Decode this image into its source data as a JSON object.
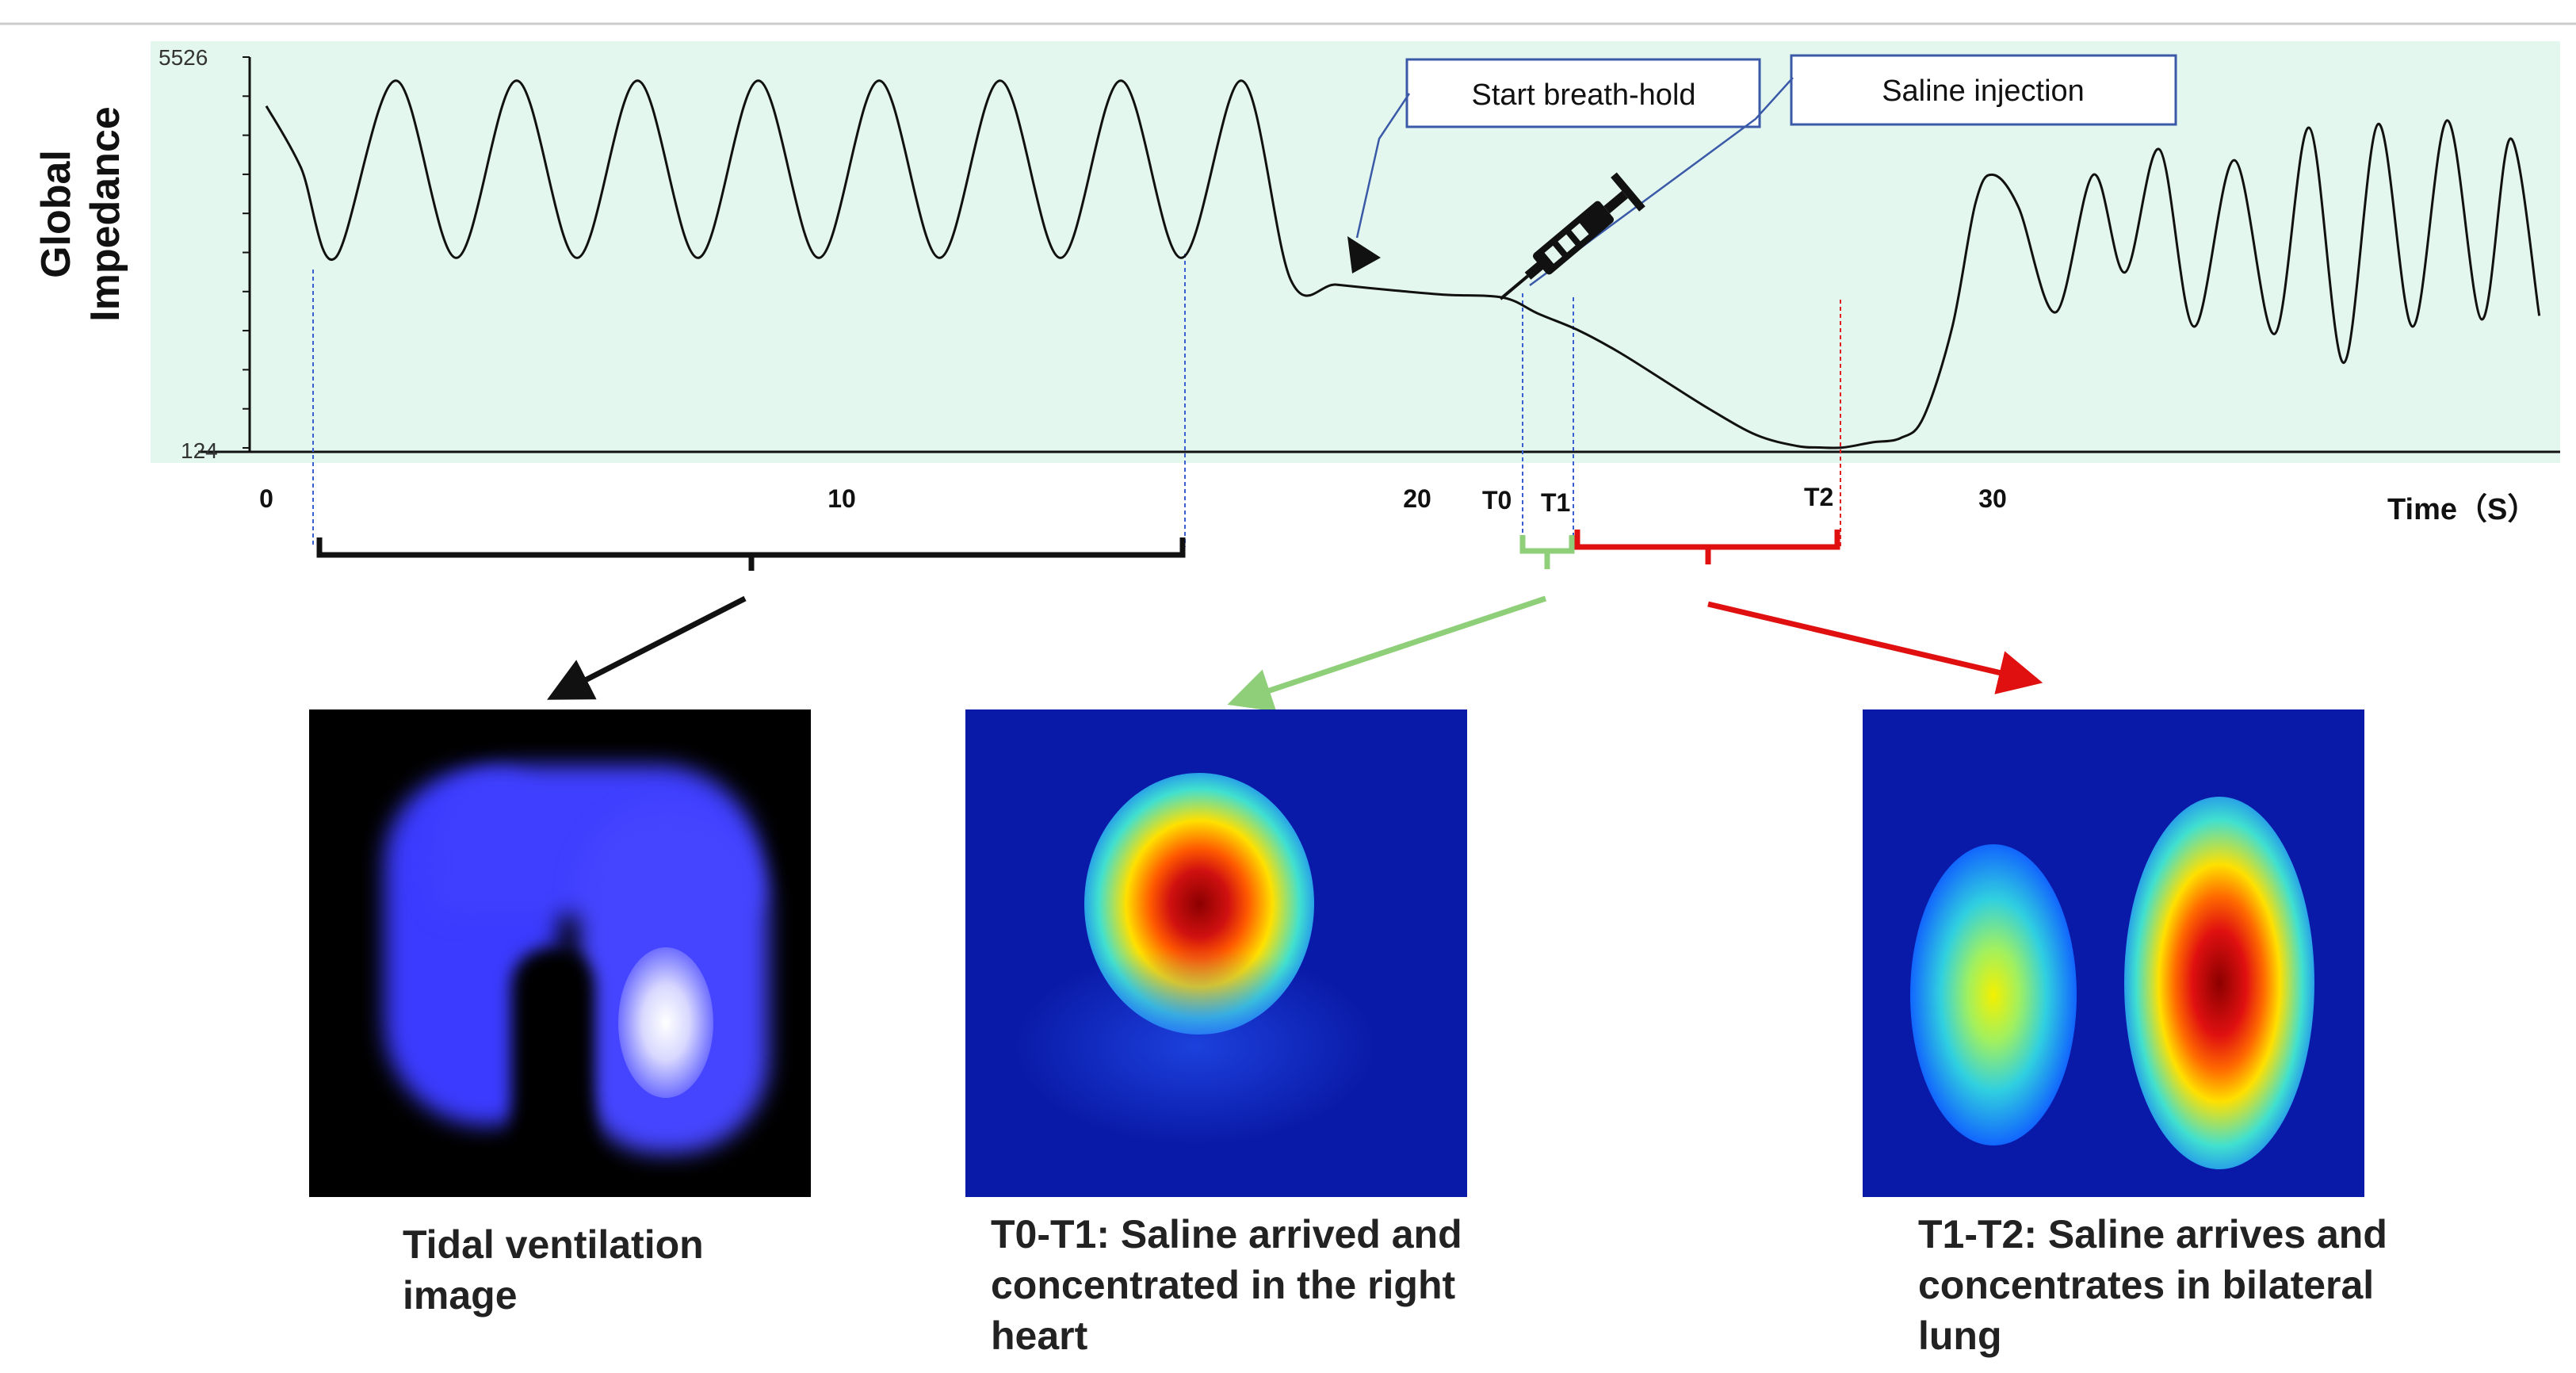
{
  "chart_data": {
    "type": "line",
    "ylabel_line1": "Global",
    "ylabel_line2": "Impedance",
    "xlabel": "Time（S）",
    "ylim": [
      124,
      5526
    ],
    "y_ticks": [
      "5526",
      "124"
    ],
    "xlim": [
      0,
      39.5
    ],
    "x_ticks": [
      {
        "value": 0,
        "label": "0"
      },
      {
        "value": 10,
        "label": "10"
      },
      {
        "value": 20,
        "label": "20"
      },
      {
        "value": 30,
        "label": "30"
      }
    ],
    "time_markers": [
      {
        "name": "T0",
        "x": 21.6
      },
      {
        "name": "T1",
        "x": 22.5
      },
      {
        "name": "T2",
        "x": 27.1
      }
    ],
    "series": [
      {
        "x": [
          0,
          0.6,
          1.2,
          2.25,
          3.3,
          4.35,
          5.4,
          6.45,
          7.5,
          8.55,
          9.6,
          10.65,
          11.7,
          12.75,
          13.8,
          14.85,
          15.9,
          16.95,
          17.8,
          18.6,
          19.6,
          20.5,
          21.5,
          22.1,
          22.8,
          23.5,
          24.3,
          25.1,
          25.9,
          26.6,
          27.0,
          27.4,
          27.9,
          28.4,
          28.8,
          29.3,
          29.7,
          30.0,
          30.45,
          31.1,
          31.75,
          32.3,
          32.9,
          33.5,
          34.2,
          34.9,
          35.5,
          36.1,
          36.7,
          37.3,
          37.9,
          38.5,
          39.0,
          39.5
        ],
        "y": [
          4850,
          4000,
          2750,
          5200,
          2750,
          5200,
          2750,
          5200,
          2750,
          5200,
          2750,
          5200,
          2750,
          5200,
          2750,
          5200,
          2750,
          5200,
          2450,
          2380,
          2300,
          2240,
          2200,
          1980,
          1750,
          1450,
          1050,
          650,
          300,
          150,
          130,
          130,
          200,
          260,
          550,
          1800,
          3500,
          3900,
          3450,
          2000,
          3900,
          2550,
          4250,
          1800,
          4100,
          1700,
          4550,
          1300,
          4600,
          1800,
          4650,
          1900,
          4400,
          1950
        ],
        "color": "#111111"
      }
    ]
  },
  "callouts": {
    "breath_hold": "Start breath-hold",
    "saline": "Saline injection"
  },
  "captions": {
    "tidal": "Tidal ventilation image",
    "t0t1": "T0-T1: Saline arrived and concentrated in the right heart",
    "t1t2": "T1-T2: Saline arrives and concentrates in bilateral lung"
  },
  "colors": {
    "plot_background": "#e4f7ef",
    "bracket_tidal": "#111111",
    "bracket_t0t1": "#8fcf7a",
    "bracket_t1t2": "#e01010",
    "marker_line_blue": "#3a5fd0",
    "marker_line_red": "#e02020",
    "callout_border": "#3a5aa8"
  },
  "icons": [
    "syringe-icon",
    "breath-hold-arrow-icon"
  ]
}
